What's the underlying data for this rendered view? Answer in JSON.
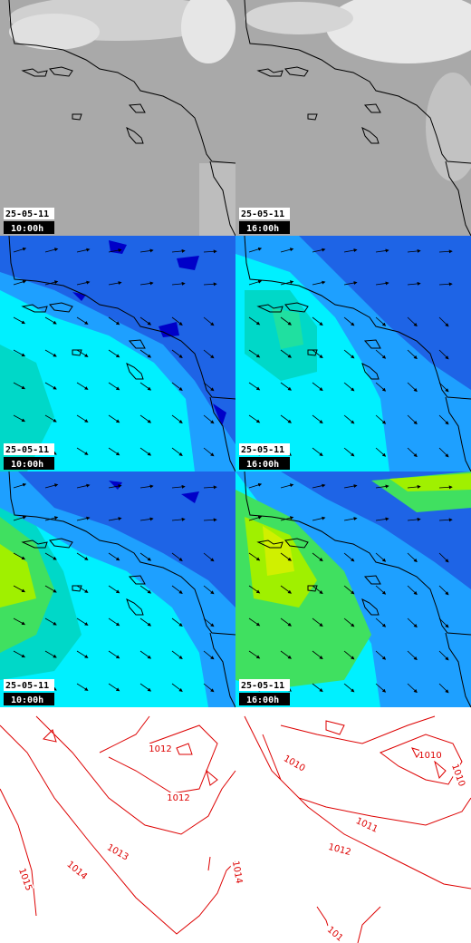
{
  "panels": [
    {
      "date": "25-05-11",
      "time": "10:00h"
    },
    {
      "date": "25-05-11",
      "time": "16:00h"
    },
    {
      "date": "25-05-11",
      "time": "10:00h"
    },
    {
      "date": "25-05-11",
      "time": "16:00h"
    },
    {
      "date": "25-05-11",
      "time": "10:00h"
    },
    {
      "date": "25-05-11",
      "time": "16:00h"
    }
  ],
  "isobar_labels": {
    "left": [
      "1012",
      "1012",
      "1013",
      "1014",
      "1015",
      "1014"
    ],
    "right": [
      "1010",
      "1010",
      "1010",
      "1011",
      "1012",
      "101"
    ]
  }
}
